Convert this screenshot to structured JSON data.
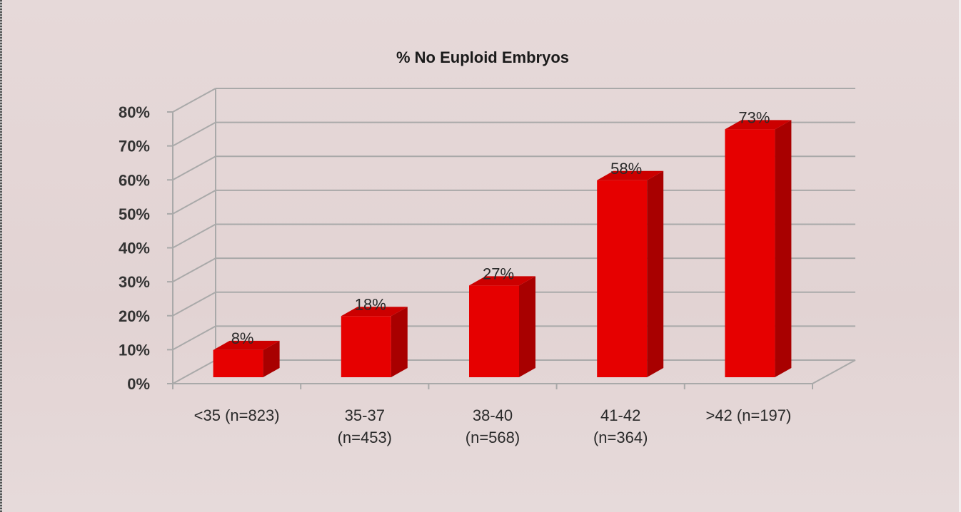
{
  "chart_data": {
    "type": "bar",
    "title": "% No Euploid Embryos",
    "categories": [
      [
        "<35 (n=823)"
      ],
      [
        "35-37",
        "(n=453)"
      ],
      [
        "38-40",
        "(n=568)"
      ],
      [
        "41-42",
        "(n=364)"
      ],
      [
        ">42 (n=197)"
      ]
    ],
    "values": [
      8,
      18,
      27,
      58,
      73
    ],
    "data_labels": [
      "8%",
      "18%",
      "27%",
      "58%",
      "73%"
    ],
    "ylim": [
      0,
      80
    ],
    "yticks": [
      "0%",
      "10%",
      "20%",
      "30%",
      "40%",
      "50%",
      "60%",
      "70%",
      "80%"
    ],
    "grid": true,
    "style": "3d-column",
    "colors": {
      "bar_front": "#e60000",
      "bar_side": "#a80000",
      "bar_top": "#cc0000",
      "grid": "#a9a9a9",
      "background": "#e4d6d6"
    }
  }
}
